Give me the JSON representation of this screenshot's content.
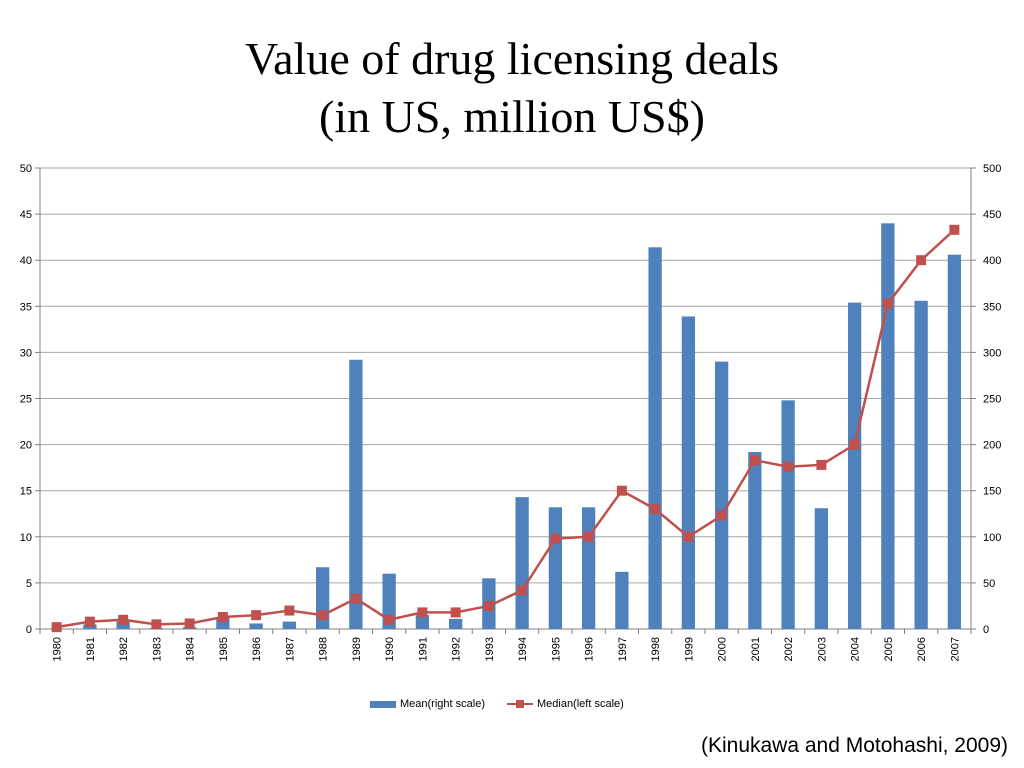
{
  "title_lines": [
    "Value of drug licensing deals",
    "(in US, million US$)"
  ],
  "source": "(Kinukawa and Motohashi, 2009)",
  "colors": {
    "bar": "#4f81bd",
    "line": "#c0504d",
    "grid": "#a6a6a6",
    "axis": "#808080"
  },
  "chart_data": {
    "type": "bar",
    "title": "",
    "categories": [
      "1980",
      "1981",
      "1982",
      "1983",
      "1984",
      "1985",
      "1986",
      "1987",
      "1988",
      "1989",
      "1990",
      "1991",
      "1992",
      "1993",
      "1994",
      "1995",
      "1996",
      "1997",
      "1998",
      "1999",
      "2000",
      "2001",
      "2002",
      "2003",
      "2004",
      "2005",
      "2006",
      "2007"
    ],
    "series": [
      {
        "name": "Mean(right scale)",
        "kind": "bar",
        "axis": "right",
        "values": [
          0,
          5,
          8,
          1,
          2,
          13,
          6,
          8,
          67,
          292,
          60,
          15,
          11,
          55,
          143,
          132,
          132,
          62,
          414,
          339,
          290,
          192,
          248,
          131,
          354,
          440,
          356,
          406
        ]
      },
      {
        "name": "Median(left scale)",
        "kind": "line",
        "axis": "left",
        "values": [
          0.2,
          0.8,
          1.0,
          0.5,
          0.6,
          1.3,
          1.5,
          2.0,
          1.5,
          3.3,
          1.0,
          1.8,
          1.8,
          2.5,
          4.2,
          9.8,
          10.0,
          15.0,
          13.0,
          10.0,
          12.3,
          18.3,
          17.6,
          17.8,
          20.0,
          35.3,
          40.0,
          43.3
        ]
      }
    ],
    "y_left": {
      "ylim": [
        0,
        50
      ],
      "ticks": [
        "0",
        "5",
        "10",
        "15",
        "20",
        "25",
        "30",
        "35",
        "40",
        "45",
        "50"
      ]
    },
    "y_right": {
      "ylim": [
        0,
        500
      ],
      "ticks": [
        "0",
        "50",
        "100",
        "150",
        "200",
        "250",
        "300",
        "350",
        "400",
        "450",
        "500"
      ]
    },
    "grid": true,
    "legend": "bottom"
  }
}
